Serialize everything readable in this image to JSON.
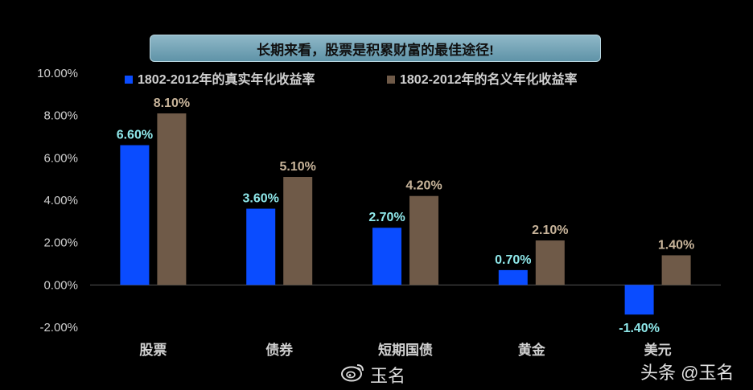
{
  "title": "长期来看，股票是积累财富的最佳途径!",
  "watermarks": {
    "weibo": "玉名",
    "toutiao": "头条 @玉名"
  },
  "colors": {
    "real": "#0a4cff",
    "nominal": "#6f5a48",
    "real_label": "#8fe8ea",
    "nominal_label": "#c8b49a"
  },
  "chart_data": {
    "type": "bar",
    "categories": [
      "股票",
      "债券",
      "短期国债",
      "黄金",
      "美元"
    ],
    "series": [
      {
        "name": "1802-2012年的真实年化收益率",
        "values": [
          6.6,
          3.6,
          2.7,
          0.7,
          -1.4
        ],
        "labels": [
          "6.60%",
          "3.60%",
          "2.70%",
          "0.70%",
          "-1.40%"
        ]
      },
      {
        "name": "1802-2012年的名义年化收益率",
        "values": [
          8.1,
          5.1,
          4.2,
          2.1,
          1.4
        ],
        "labels": [
          "8.10%",
          "5.10%",
          "4.20%",
          "2.10%",
          "1.40%"
        ]
      }
    ],
    "yticks": [
      "10.00%",
      "8.00%",
      "6.00%",
      "4.00%",
      "2.00%",
      "0.00%",
      "-2.00%"
    ],
    "ytick_values": [
      10,
      8,
      6,
      4,
      2,
      0,
      -2
    ],
    "ylim": [
      -2,
      10
    ],
    "legend": "top-left",
    "grid": false
  }
}
